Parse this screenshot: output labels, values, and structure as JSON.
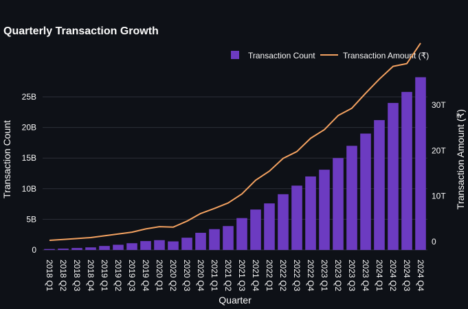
{
  "chart_data": {
    "type": "bar",
    "title": "Quarterly Transaction Growth",
    "xlabel": "Quarter",
    "ylabel": "Transaction Count",
    "y2label": "Transaction Amount (₹)",
    "categories": [
      "2018 Q1",
      "2018 Q2",
      "2018 Q3",
      "2018 Q4",
      "2019 Q1",
      "2019 Q2",
      "2019 Q3",
      "2019 Q4",
      "2020 Q1",
      "2020 Q2",
      "2020 Q3",
      "2020 Q4",
      "2021 Q1",
      "2021 Q2",
      "2021 Q3",
      "2021 Q4",
      "2022 Q1",
      "2022 Q2",
      "2022 Q3",
      "2022 Q4",
      "2023 Q1",
      "2023 Q2",
      "2023 Q3",
      "2023 Q4",
      "2024 Q1",
      "2024 Q2",
      "2024 Q3",
      "2024 Q4"
    ],
    "series": [
      {
        "name": "Transaction Count",
        "type": "bar",
        "axis": "left",
        "color": "#6c3bc1",
        "values": [
          0.15,
          0.22,
          0.32,
          0.42,
          0.65,
          0.85,
          1.1,
          1.45,
          1.6,
          1.4,
          2.0,
          2.8,
          3.4,
          3.9,
          5.2,
          6.6,
          7.6,
          9.1,
          10.5,
          12.0,
          13.1,
          15.0,
          17.0,
          19.0,
          21.2,
          24.0,
          25.8,
          28.2
        ]
      },
      {
        "name": "Transaction Amount (₹)",
        "type": "line",
        "axis": "right",
        "color": "#f4a261",
        "values": [
          0.3,
          0.5,
          0.7,
          0.9,
          1.3,
          1.7,
          2.1,
          2.8,
          3.3,
          3.2,
          4.5,
          6.2,
          7.3,
          8.5,
          10.5,
          13.5,
          15.5,
          18.3,
          19.8,
          22.7,
          24.6,
          27.7,
          29.3,
          32.6,
          35.7,
          38.5,
          39.1,
          43.6
        ]
      }
    ],
    "y_ticks": [
      0,
      5,
      10,
      15,
      20,
      25
    ],
    "y_tick_labels": [
      "0",
      "5B",
      "10B",
      "15B",
      "20B",
      "25B"
    ],
    "y2_ticks": [
      0,
      10,
      20,
      30
    ],
    "y2_tick_labels": [
      "0",
      "10T",
      "20T",
      "30T"
    ],
    "legend_position": "top-right",
    "grid": true
  }
}
